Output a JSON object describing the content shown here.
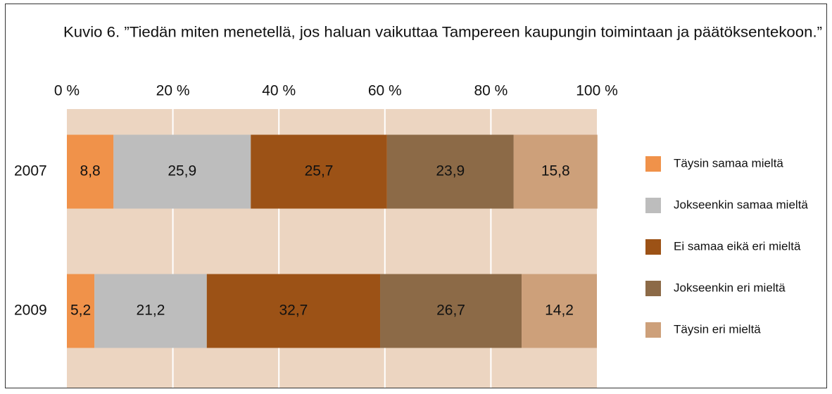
{
  "chart_data": {
    "type": "stacked-barh",
    "title": "Kuvio 6. ”Tiedän miten menetellä, jos haluan vaikuttaa Tampereen kaupungin toimintaan ja päätöksentekoon.”",
    "categories": [
      "2007",
      "2009"
    ],
    "series": [
      {
        "name": "Täysin samaa mieltä",
        "color": "#f0924a",
        "values": [
          8.8,
          5.2
        ],
        "value_labels": [
          "8,8",
          "5,2"
        ]
      },
      {
        "name": "Jokseenkin samaa mieltä",
        "color": "#bdbdbd",
        "values": [
          25.9,
          21.2
        ],
        "value_labels": [
          "25,9",
          "21,2"
        ]
      },
      {
        "name": "Ei samaa eikä eri mieltä",
        "color": "#9c5216",
        "values": [
          25.7,
          32.7
        ],
        "value_labels": [
          "25,7",
          "32,7"
        ]
      },
      {
        "name": "Jokseenkin eri mieltä",
        "color": "#8c6a47",
        "values": [
          23.9,
          26.7
        ],
        "value_labels": [
          "23,9",
          "26,7"
        ]
      },
      {
        "name": "Täysin eri mieltä",
        "color": "#cda07a",
        "values": [
          15.8,
          14.2
        ],
        "value_labels": [
          "15,8",
          "14,2"
        ]
      }
    ],
    "xlim": [
      0,
      100
    ],
    "xticks": [
      {
        "value": 0,
        "label": "0 %"
      },
      {
        "value": 20,
        "label": "20 %"
      },
      {
        "value": 40,
        "label": "40 %"
      },
      {
        "value": 60,
        "label": "60 %"
      },
      {
        "value": 80,
        "label": "80 %"
      },
      {
        "value": 100,
        "label": "100 %"
      }
    ],
    "grid": true,
    "legend": "right"
  }
}
